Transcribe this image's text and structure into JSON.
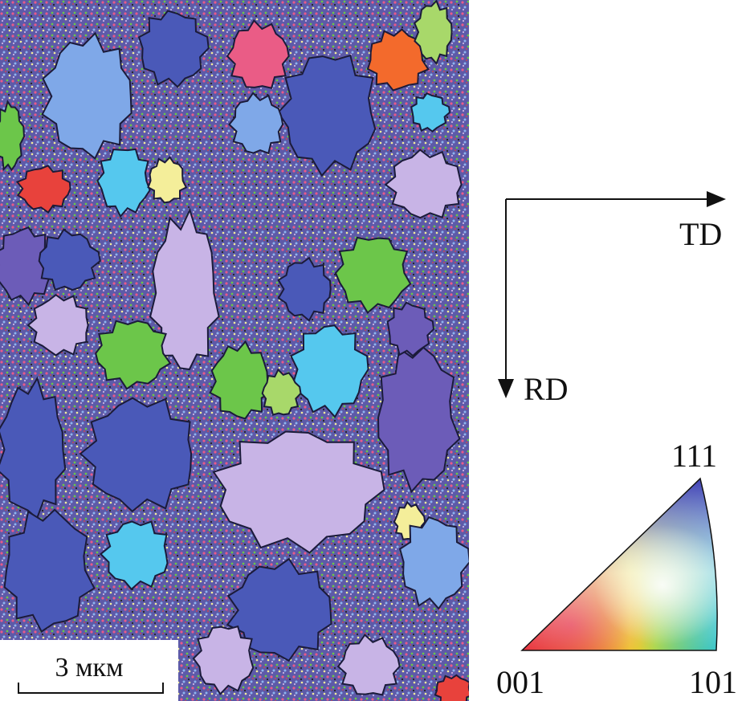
{
  "image": {
    "description_free": true
  },
  "scale_bar": {
    "label": "3 мкм"
  },
  "axes": {
    "horizontal": "TD",
    "vertical": "RD"
  },
  "legend": {
    "top": "111",
    "bottom_left": "001",
    "bottom_right": "101"
  },
  "colors": {
    "blue": "#4a59b8",
    "light_blue": "#7fa8e8",
    "cyan": "#55c8ee",
    "green": "#6cc64a",
    "lime": "#a8d86a",
    "red": "#e8423c",
    "orange": "#f36a2c",
    "pink": "#ea5c86",
    "lavender": "#c8b4e6",
    "purple": "#6c5cb8",
    "yellow": "#f4ee9a"
  }
}
